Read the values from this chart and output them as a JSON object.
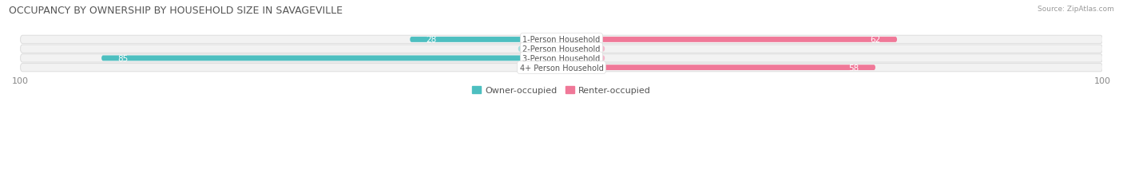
{
  "title": "OCCUPANCY BY OWNERSHIP BY HOUSEHOLD SIZE IN SAVAGEVILLE",
  "source": "Source: ZipAtlas.com",
  "categories": [
    "1-Person Household",
    "2-Person Household",
    "3-Person Household",
    "4+ Person Household"
  ],
  "owner_values": [
    28,
    0,
    85,
    0
  ],
  "renter_values": [
    62,
    0,
    0,
    58
  ],
  "owner_color": "#4DBFC0",
  "renter_color": "#F07898",
  "owner_color_light": "#A8DEDE",
  "renter_color_light": "#F4B8CC",
  "row_bg_color": "#F2F2F2",
  "row_border_color": "#E0E0E0",
  "xlim": 100,
  "label_fontsize": 7.5,
  "title_fontsize": 9,
  "legend_fontsize": 8,
  "axis_fontsize": 8
}
